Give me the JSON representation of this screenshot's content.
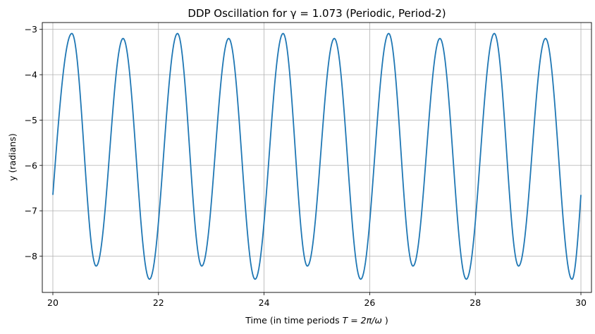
{
  "chart_data": {
    "type": "line",
    "title": "DDP Oscillation for γ = 1.073 (Periodic, Period-2)",
    "xlabel_prefix": "Time (in time periods ",
    "xlabel_math": "T = 2π/ω",
    "xlabel_suffix": " )",
    "ylabel": "y (radians)",
    "xlim": [
      19.8,
      30.2
    ],
    "ylim": [
      -8.8,
      -2.85
    ],
    "xticks": [
      20,
      22,
      24,
      26,
      28,
      30
    ],
    "xtick_labels": [
      "20",
      "22",
      "24",
      "26",
      "28",
      "30"
    ],
    "yticks": [
      -8,
      -7,
      -6,
      -5,
      -4,
      -3
    ],
    "ytick_labels": [
      "−8",
      "−7",
      "−6",
      "−5",
      "−4",
      "−3"
    ],
    "grid": true,
    "legend": "none",
    "series": [
      {
        "name": "y",
        "color": "#1f77b4",
        "x_start": 20,
        "x_end": 30,
        "period": 1,
        "start_value": -6.65,
        "peaks": [
          {
            "x": 20.36,
            "y": -3.09
          },
          {
            "x": 21.33,
            "y": -3.2
          },
          {
            "x": 22.36,
            "y": -3.09
          },
          {
            "x": 23.33,
            "y": -3.2
          },
          {
            "x": 24.36,
            "y": -3.09
          },
          {
            "x": 25.33,
            "y": -3.2
          },
          {
            "x": 26.36,
            "y": -3.09
          },
          {
            "x": 27.33,
            "y": -3.2
          },
          {
            "x": 28.36,
            "y": -3.09
          },
          {
            "x": 29.33,
            "y": -3.2
          }
        ],
        "troughs": [
          {
            "x": 20.82,
            "y": -8.22
          },
          {
            "x": 21.83,
            "y": -8.51
          },
          {
            "x": 22.82,
            "y": -8.22
          },
          {
            "x": 23.83,
            "y": -8.51
          },
          {
            "x": 24.82,
            "y": -8.22
          },
          {
            "x": 25.83,
            "y": -8.51
          },
          {
            "x": 26.82,
            "y": -8.22
          },
          {
            "x": 27.83,
            "y": -8.51
          },
          {
            "x": 28.82,
            "y": -8.22
          },
          {
            "x": 29.83,
            "y": -8.51
          }
        ],
        "end_value": -6.65
      }
    ]
  }
}
